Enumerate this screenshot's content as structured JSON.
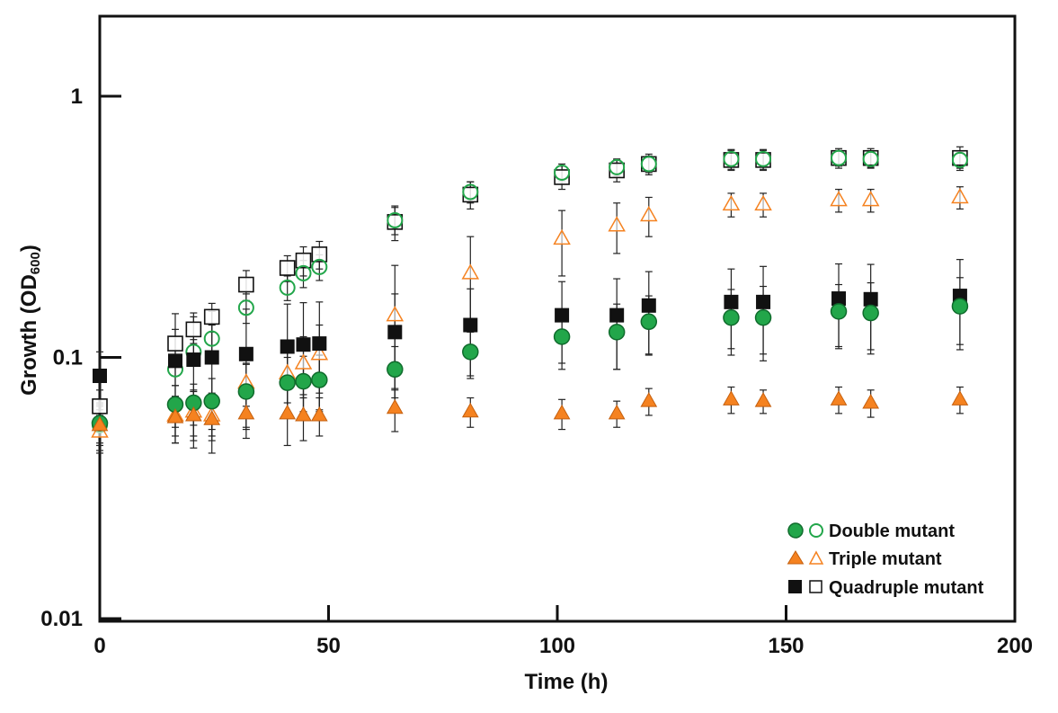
{
  "chart_data": {
    "type": "scatter",
    "title": "",
    "xlabel": "Time (h)",
    "ylabel": {
      "main": "Growth (OD",
      "subscript": "600",
      "close": ")"
    },
    "xlim": [
      0,
      200
    ],
    "ylim": [
      0.01,
      2
    ],
    "yscale": "log",
    "xticks": [
      0,
      50,
      100,
      150,
      200
    ],
    "yticks": [
      {
        "value": 1,
        "label": "1"
      },
      {
        "value": 0.1,
        "label": "0.1"
      },
      {
        "value": 0.01,
        "label": "0.01"
      }
    ],
    "grid": false,
    "legend_position": "bottom-right",
    "legend": [
      {
        "label": "Double mutant",
        "series": [
          "double_filled",
          "double_open"
        ]
      },
      {
        "label": "Triple mutant",
        "series": [
          "triple_filled",
          "triple_open"
        ]
      },
      {
        "label": "Quadruple mutant",
        "series": [
          "quad_filled",
          "quad_open"
        ]
      }
    ],
    "colors": {
      "green": "#22a64a",
      "orange": "#f58220",
      "black": "#111111",
      "errorbar": "#222222"
    },
    "series": [
      {
        "name": "quad_open",
        "marker": "square",
        "filled": false,
        "color": "#111111",
        "points": [
          [
            0,
            0.065,
            0.01
          ],
          [
            16.5,
            0.113,
            0.015
          ],
          [
            20.5,
            0.128,
            0.015
          ],
          [
            24.5,
            0.143,
            0.018
          ],
          [
            32,
            0.19,
            0.025
          ],
          [
            41,
            0.22,
            0.025
          ],
          [
            44.5,
            0.235,
            0.03
          ],
          [
            48,
            0.248,
            0.03
          ],
          [
            64.5,
            0.33,
            0.05
          ],
          [
            81,
            0.42,
            0.05
          ],
          [
            101,
            0.49,
            0.05
          ],
          [
            113,
            0.52,
            0.05
          ],
          [
            120,
            0.55,
            0.05
          ],
          [
            138,
            0.57,
            0.05
          ],
          [
            145,
            0.57,
            0.05
          ],
          [
            161.5,
            0.58,
            0.05
          ],
          [
            168.5,
            0.58,
            0.05
          ],
          [
            188,
            0.58,
            0.06
          ]
        ]
      },
      {
        "name": "double_open",
        "marker": "circle",
        "filled": false,
        "color": "#22a64a",
        "points": [
          [
            0,
            0.055,
            0.008
          ],
          [
            16.5,
            0.09,
            0.012
          ],
          [
            20.5,
            0.105,
            0.012
          ],
          [
            24.5,
            0.118,
            0.015
          ],
          [
            32,
            0.155,
            0.02
          ],
          [
            41,
            0.185,
            0.02
          ],
          [
            44.5,
            0.21,
            0.025
          ],
          [
            48,
            0.222,
            0.025
          ],
          [
            64.5,
            0.335,
            0.04
          ],
          [
            81,
            0.43,
            0.04
          ],
          [
            101,
            0.51,
            0.04
          ],
          [
            113,
            0.535,
            0.04
          ],
          [
            120,
            0.55,
            0.04
          ],
          [
            138,
            0.575,
            0.05
          ],
          [
            145,
            0.575,
            0.05
          ],
          [
            161.5,
            0.58,
            0.04
          ],
          [
            168.5,
            0.575,
            0.04
          ],
          [
            188,
            0.57,
            0.04
          ]
        ]
      },
      {
        "name": "triple_open",
        "marker": "triangle",
        "filled": false,
        "color": "#f58220",
        "points": [
          [
            0,
            0.052,
            0.008
          ],
          [
            16.5,
            0.06,
            0.01
          ],
          [
            20.5,
            0.062,
            0.012
          ],
          [
            24.5,
            0.06,
            0.012
          ],
          [
            32,
            0.08,
            0.015
          ],
          [
            41,
            0.087,
            0.02
          ],
          [
            44.5,
            0.095,
            0.025
          ],
          [
            48,
            0.103,
            0.03
          ],
          [
            64.5,
            0.145,
            0.08
          ],
          [
            81,
            0.21,
            0.08
          ],
          [
            101,
            0.285,
            0.08
          ],
          [
            113,
            0.32,
            0.07
          ],
          [
            120,
            0.35,
            0.06
          ],
          [
            138,
            0.385,
            0.04
          ],
          [
            145,
            0.385,
            0.04
          ],
          [
            161.5,
            0.4,
            0.04
          ],
          [
            168.5,
            0.4,
            0.04
          ],
          [
            188,
            0.41,
            0.04
          ]
        ]
      },
      {
        "name": "quad_filled",
        "marker": "square",
        "filled": true,
        "color": "#111111",
        "points": [
          [
            0,
            0.085,
            0.02
          ],
          [
            16.5,
            0.097,
            0.05
          ],
          [
            20.5,
            0.098,
            0.05
          ],
          [
            24.5,
            0.1,
            0.05
          ],
          [
            32,
            0.103,
            0.05
          ],
          [
            41,
            0.11,
            0.05
          ],
          [
            44.5,
            0.112,
            0.05
          ],
          [
            48,
            0.113,
            0.05
          ],
          [
            64.5,
            0.125,
            0.05
          ],
          [
            81,
            0.133,
            0.05
          ],
          [
            101,
            0.145,
            0.05
          ],
          [
            113,
            0.145,
            0.055
          ],
          [
            120,
            0.158,
            0.055
          ],
          [
            138,
            0.163,
            0.055
          ],
          [
            145,
            0.163,
            0.06
          ],
          [
            161.5,
            0.168,
            0.06
          ],
          [
            168.5,
            0.167,
            0.06
          ],
          [
            188,
            0.172,
            0.065
          ]
        ]
      },
      {
        "name": "double_filled",
        "marker": "circle",
        "filled": true,
        "color": "#22a64a",
        "points": [
          [
            0,
            0.056,
            0.01
          ],
          [
            16.5,
            0.066,
            0.012
          ],
          [
            20.5,
            0.067,
            0.012
          ],
          [
            24.5,
            0.068,
            0.015
          ],
          [
            32,
            0.074,
            0.02
          ],
          [
            41,
            0.08,
            0.02
          ],
          [
            44.5,
            0.081,
            0.02
          ],
          [
            48,
            0.082,
            0.02
          ],
          [
            64.5,
            0.09,
            0.02
          ],
          [
            81,
            0.105,
            0.02
          ],
          [
            101,
            0.12,
            0.03
          ],
          [
            113,
            0.125,
            0.035
          ],
          [
            120,
            0.137,
            0.035
          ],
          [
            138,
            0.142,
            0.04
          ],
          [
            145,
            0.142,
            0.045
          ],
          [
            161.5,
            0.15,
            0.04
          ],
          [
            168.5,
            0.148,
            0.045
          ],
          [
            188,
            0.157,
            0.045
          ]
        ]
      },
      {
        "name": "triple_filled",
        "marker": "triangle",
        "filled": true,
        "color": "#f58220",
        "points": [
          [
            0,
            0.055,
            0.012
          ],
          [
            16.5,
            0.059,
            0.012
          ],
          [
            20.5,
            0.06,
            0.015
          ],
          [
            24.5,
            0.058,
            0.015
          ],
          [
            32,
            0.061,
            0.012
          ],
          [
            41,
            0.061,
            0.015
          ],
          [
            44.5,
            0.06,
            0.012
          ],
          [
            48,
            0.06,
            0.01
          ],
          [
            64.5,
            0.064,
            0.012
          ],
          [
            81,
            0.062,
            0.008
          ],
          [
            101,
            0.061,
            0.008
          ],
          [
            113,
            0.061,
            0.007
          ],
          [
            120,
            0.068,
            0.008
          ],
          [
            138,
            0.069,
            0.008
          ],
          [
            145,
            0.068,
            0.007
          ],
          [
            161.5,
            0.069,
            0.008
          ],
          [
            168.5,
            0.067,
            0.008
          ],
          [
            188,
            0.069,
            0.008
          ]
        ]
      }
    ]
  }
}
